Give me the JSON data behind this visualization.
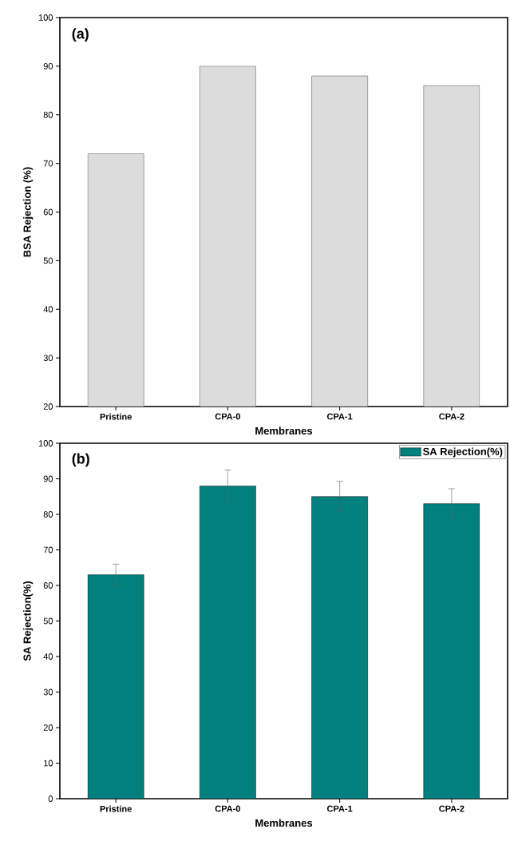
{
  "chart_data": [
    {
      "type": "bar",
      "annotations": [
        "(a)"
      ],
      "xlabel": "Membranes",
      "ylabel": "BSA Rejection (%)",
      "categories": [
        "Pristine",
        "CPA-0",
        "CPA-1",
        "CPA-2"
      ],
      "values": [
        72,
        90,
        88,
        86
      ],
      "color": "#dcdcdc",
      "ylim": [
        20,
        100
      ],
      "yticks": [
        20,
        30,
        40,
        50,
        60,
        70,
        80,
        90,
        100
      ]
    },
    {
      "type": "bar",
      "annotations": [
        "(b)"
      ],
      "xlabel": "Membranes",
      "ylabel": "SA Rejection(%)",
      "categories": [
        "Pristine",
        "CPA-0",
        "CPA-1",
        "CPA-2"
      ],
      "series": [
        {
          "name": "SA Rejection(%)",
          "color": "#00807f",
          "values": [
            63,
            88,
            85,
            83
          ],
          "errors": [
            3,
            4.5,
            4.3,
            4.2
          ]
        }
      ],
      "ylim": [
        0,
        100
      ],
      "yticks": [
        0,
        10,
        20,
        30,
        40,
        50,
        60,
        70,
        80,
        90,
        100
      ],
      "legend": "top right"
    }
  ]
}
